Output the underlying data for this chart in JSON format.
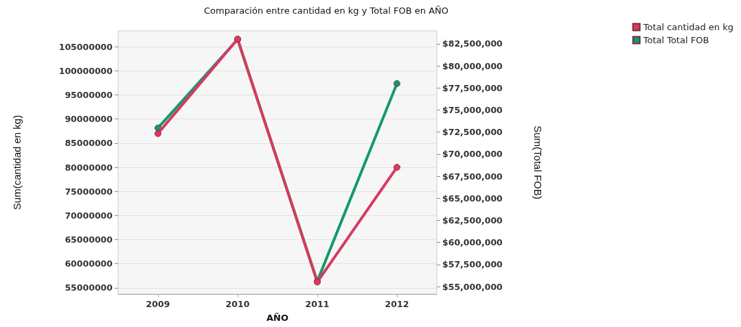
{
  "chart_data": {
    "type": "line",
    "title": "Comparación entre cantidad en kg y Total FOB en AÑO",
    "xlabel": "AÑO",
    "ylabel": "Sum(cantidad en kg)",
    "y2label": "Sum(Total FOB)",
    "categories": [
      "2009",
      "2010",
      "2011",
      "2012"
    ],
    "series": [
      {
        "name": "Total cantidad en kg",
        "color": "#d9395f",
        "values": [
          87000000,
          106600000,
          56200000,
          80000000
        ]
      },
      {
        "name": "Total Total FOB",
        "color": "#13996e",
        "axis": "y2",
        "values": [
          72970000,
          83000000,
          55600000,
          78000000
        ]
      }
    ],
    "ylim": [
      53700000,
      108300000
    ],
    "yticks": [
      55000000,
      60000000,
      65000000,
      70000000,
      75000000,
      80000000,
      85000000,
      90000000,
      95000000,
      100000000,
      105000000
    ],
    "y2lim": [
      54150000,
      83970000
    ],
    "y2ticks": [
      {
        "value": 55000000,
        "label": "$55,000,000"
      },
      {
        "value": 57500000,
        "label": "$57,500,000"
      },
      {
        "value": 60000000,
        "label": "$60,000,000"
      },
      {
        "value": 62500000,
        "label": "$62,500,000"
      },
      {
        "value": 65000000,
        "label": "$65,000,000"
      },
      {
        "value": 67500000,
        "label": "$67,500,000"
      },
      {
        "value": 70000000,
        "label": "$70,000,000"
      },
      {
        "value": 72500000,
        "label": "$72,500,000"
      },
      {
        "value": 75000000,
        "label": "$75,000,000"
      },
      {
        "value": 77500000,
        "label": "$77,500,000"
      },
      {
        "value": 80000000,
        "label": "$80,000,000"
      },
      {
        "value": 82500000,
        "label": "$82,500,000"
      }
    ],
    "grid": "y",
    "legend": "top right",
    "marker": "circle",
    "line_style": "solid"
  }
}
